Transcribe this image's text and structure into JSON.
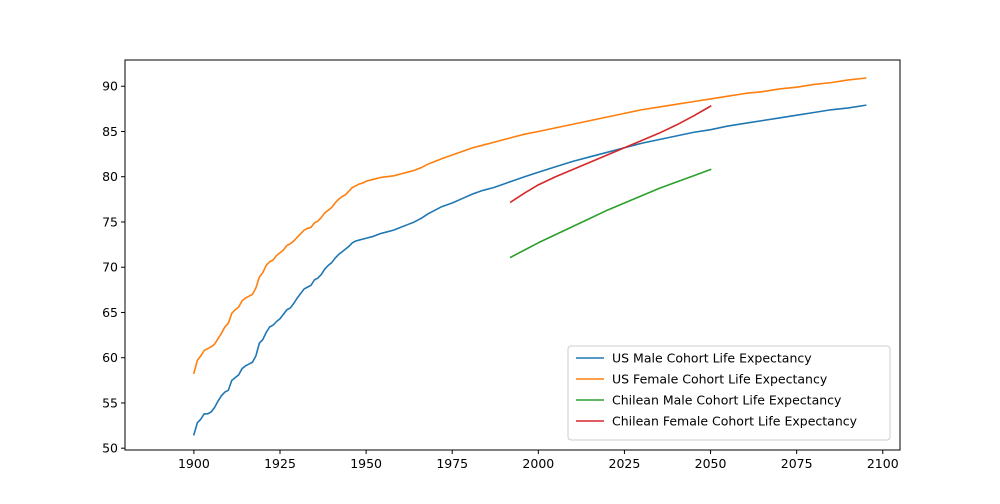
{
  "chart_data": {
    "type": "line",
    "title": "",
    "xlabel": "",
    "ylabel": "",
    "xlim": [
      1880,
      2105
    ],
    "ylim": [
      49.8,
      92.9
    ],
    "xticks": [
      1900,
      1925,
      1950,
      1975,
      2000,
      2025,
      2050,
      2075,
      2100
    ],
    "xtick_labels": [
      "1900",
      "1925",
      "1950",
      "1975",
      "2000",
      "2025",
      "2050",
      "2075",
      "2100"
    ],
    "yticks": [
      50,
      55,
      60,
      65,
      70,
      75,
      80,
      85,
      90
    ],
    "ytick_labels": [
      "50",
      "55",
      "60",
      "65",
      "70",
      "75",
      "80",
      "85",
      "90"
    ],
    "grid": false,
    "legend_position": "lower-right",
    "series": [
      {
        "name": "US Male Cohort Life Expectancy",
        "color": "#1f77b4",
        "points": [
          [
            1900,
            51.5
          ],
          [
            1901,
            52.8
          ],
          [
            1902,
            53.2
          ],
          [
            1903,
            53.8
          ],
          [
            1904,
            53.8
          ],
          [
            1905,
            54.0
          ],
          [
            1906,
            54.5
          ],
          [
            1907,
            55.2
          ],
          [
            1908,
            55.8
          ],
          [
            1909,
            56.2
          ],
          [
            1910,
            56.4
          ],
          [
            1911,
            57.5
          ],
          [
            1912,
            57.8
          ],
          [
            1913,
            58.1
          ],
          [
            1914,
            58.8
          ],
          [
            1915,
            59.1
          ],
          [
            1916,
            59.3
          ],
          [
            1917,
            59.5
          ],
          [
            1918,
            60.2
          ],
          [
            1919,
            61.6
          ],
          [
            1920,
            62.0
          ],
          [
            1921,
            62.8
          ],
          [
            1922,
            63.4
          ],
          [
            1923,
            63.6
          ],
          [
            1924,
            64.0
          ],
          [
            1925,
            64.3
          ],
          [
            1926,
            64.8
          ],
          [
            1927,
            65.3
          ],
          [
            1928,
            65.5
          ],
          [
            1929,
            66.0
          ],
          [
            1930,
            66.6
          ],
          [
            1931,
            67.1
          ],
          [
            1932,
            67.6
          ],
          [
            1933,
            67.8
          ],
          [
            1934,
            68.0
          ],
          [
            1935,
            68.6
          ],
          [
            1936,
            68.8
          ],
          [
            1937,
            69.2
          ],
          [
            1938,
            69.8
          ],
          [
            1939,
            70.2
          ],
          [
            1940,
            70.5
          ],
          [
            1941,
            71.0
          ],
          [
            1942,
            71.4
          ],
          [
            1943,
            71.7
          ],
          [
            1944,
            72.0
          ],
          [
            1945,
            72.3
          ],
          [
            1946,
            72.7
          ],
          [
            1947,
            72.9
          ],
          [
            1948,
            73.0
          ],
          [
            1949,
            73.1
          ],
          [
            1950,
            73.2
          ],
          [
            1952,
            73.4
          ],
          [
            1954,
            73.7
          ],
          [
            1956,
            73.9
          ],
          [
            1958,
            74.1
          ],
          [
            1960,
            74.4
          ],
          [
            1962,
            74.7
          ],
          [
            1964,
            75.0
          ],
          [
            1966,
            75.4
          ],
          [
            1968,
            75.9
          ],
          [
            1970,
            76.3
          ],
          [
            1972,
            76.7
          ],
          [
            1975,
            77.1
          ],
          [
            1978,
            77.6
          ],
          [
            1981,
            78.1
          ],
          [
            1984,
            78.5
          ],
          [
            1987,
            78.8
          ],
          [
            1990,
            79.2
          ],
          [
            1993,
            79.6
          ],
          [
            1996,
            80.0
          ],
          [
            2000,
            80.5
          ],
          [
            2005,
            81.1
          ],
          [
            2010,
            81.7
          ],
          [
            2015,
            82.2
          ],
          [
            2020,
            82.7
          ],
          [
            2025,
            83.2
          ],
          [
            2030,
            83.7
          ],
          [
            2035,
            84.1
          ],
          [
            2040,
            84.5
          ],
          [
            2045,
            84.9
          ],
          [
            2050,
            85.2
          ],
          [
            2055,
            85.6
          ],
          [
            2060,
            85.9
          ],
          [
            2065,
            86.2
          ],
          [
            2070,
            86.5
          ],
          [
            2075,
            86.8
          ],
          [
            2080,
            87.1
          ],
          [
            2085,
            87.4
          ],
          [
            2090,
            87.6
          ],
          [
            2095,
            87.9
          ]
        ]
      },
      {
        "name": "US Female Cohort Life Expectancy",
        "color": "#ff7f0e",
        "points": [
          [
            1900,
            58.3
          ],
          [
            1901,
            59.7
          ],
          [
            1902,
            60.2
          ],
          [
            1903,
            60.8
          ],
          [
            1904,
            61.0
          ],
          [
            1905,
            61.2
          ],
          [
            1906,
            61.5
          ],
          [
            1907,
            62.1
          ],
          [
            1908,
            62.7
          ],
          [
            1909,
            63.4
          ],
          [
            1910,
            63.8
          ],
          [
            1911,
            64.9
          ],
          [
            1912,
            65.3
          ],
          [
            1913,
            65.6
          ],
          [
            1914,
            66.3
          ],
          [
            1915,
            66.6
          ],
          [
            1916,
            66.8
          ],
          [
            1917,
            67.0
          ],
          [
            1918,
            67.7
          ],
          [
            1919,
            68.9
          ],
          [
            1920,
            69.4
          ],
          [
            1921,
            70.2
          ],
          [
            1922,
            70.6
          ],
          [
            1923,
            70.8
          ],
          [
            1924,
            71.3
          ],
          [
            1925,
            71.6
          ],
          [
            1926,
            71.9
          ],
          [
            1927,
            72.4
          ],
          [
            1928,
            72.6
          ],
          [
            1929,
            72.9
          ],
          [
            1930,
            73.3
          ],
          [
            1931,
            73.7
          ],
          [
            1932,
            74.1
          ],
          [
            1933,
            74.3
          ],
          [
            1934,
            74.4
          ],
          [
            1935,
            74.9
          ],
          [
            1936,
            75.1
          ],
          [
            1937,
            75.5
          ],
          [
            1938,
            76.0
          ],
          [
            1939,
            76.3
          ],
          [
            1940,
            76.6
          ],
          [
            1941,
            77.1
          ],
          [
            1942,
            77.5
          ],
          [
            1943,
            77.8
          ],
          [
            1944,
            78.0
          ],
          [
            1945,
            78.4
          ],
          [
            1946,
            78.8
          ],
          [
            1947,
            79.0
          ],
          [
            1948,
            79.2
          ],
          [
            1949,
            79.3
          ],
          [
            1950,
            79.5
          ],
          [
            1952,
            79.7
          ],
          [
            1954,
            79.9
          ],
          [
            1956,
            80.0
          ],
          [
            1958,
            80.1
          ],
          [
            1960,
            80.3
          ],
          [
            1962,
            80.5
          ],
          [
            1964,
            80.7
          ],
          [
            1966,
            81.0
          ],
          [
            1968,
            81.4
          ],
          [
            1970,
            81.7
          ],
          [
            1972,
            82.0
          ],
          [
            1975,
            82.4
          ],
          [
            1978,
            82.8
          ],
          [
            1981,
            83.2
          ],
          [
            1984,
            83.5
          ],
          [
            1987,
            83.8
          ],
          [
            1990,
            84.1
          ],
          [
            1993,
            84.4
          ],
          [
            1996,
            84.7
          ],
          [
            2000,
            85.0
          ],
          [
            2005,
            85.4
          ],
          [
            2010,
            85.8
          ],
          [
            2015,
            86.2
          ],
          [
            2020,
            86.6
          ],
          [
            2025,
            87.0
          ],
          [
            2030,
            87.4
          ],
          [
            2035,
            87.7
          ],
          [
            2040,
            88.0
          ],
          [
            2045,
            88.3
          ],
          [
            2050,
            88.6
          ],
          [
            2055,
            88.9
          ],
          [
            2060,
            89.2
          ],
          [
            2065,
            89.4
          ],
          [
            2070,
            89.7
          ],
          [
            2075,
            89.9
          ],
          [
            2080,
            90.2
          ],
          [
            2085,
            90.4
          ],
          [
            2090,
            90.7
          ],
          [
            2095,
            90.9
          ]
        ]
      },
      {
        "name": "Chilean Male Cohort Life Expectancy",
        "color": "#2ca02c",
        "points": [
          [
            1992,
            71.1
          ],
          [
            1996,
            71.9
          ],
          [
            2000,
            72.7
          ],
          [
            2005,
            73.6
          ],
          [
            2010,
            74.5
          ],
          [
            2015,
            75.4
          ],
          [
            2020,
            76.3
          ],
          [
            2025,
            77.1
          ],
          [
            2030,
            77.9
          ],
          [
            2035,
            78.7
          ],
          [
            2040,
            79.4
          ],
          [
            2045,
            80.1
          ],
          [
            2050,
            80.8
          ]
        ]
      },
      {
        "name": "Chilean Female Cohort Life Expectancy",
        "color": "#d62728",
        "points": [
          [
            1992,
            77.2
          ],
          [
            1996,
            78.2
          ],
          [
            2000,
            79.1
          ],
          [
            2005,
            80.0
          ],
          [
            2010,
            80.8
          ],
          [
            2015,
            81.6
          ],
          [
            2020,
            82.4
          ],
          [
            2025,
            83.2
          ],
          [
            2030,
            84.0
          ],
          [
            2035,
            84.8
          ],
          [
            2040,
            85.7
          ],
          [
            2045,
            86.7
          ],
          [
            2050,
            87.8
          ]
        ]
      }
    ]
  }
}
